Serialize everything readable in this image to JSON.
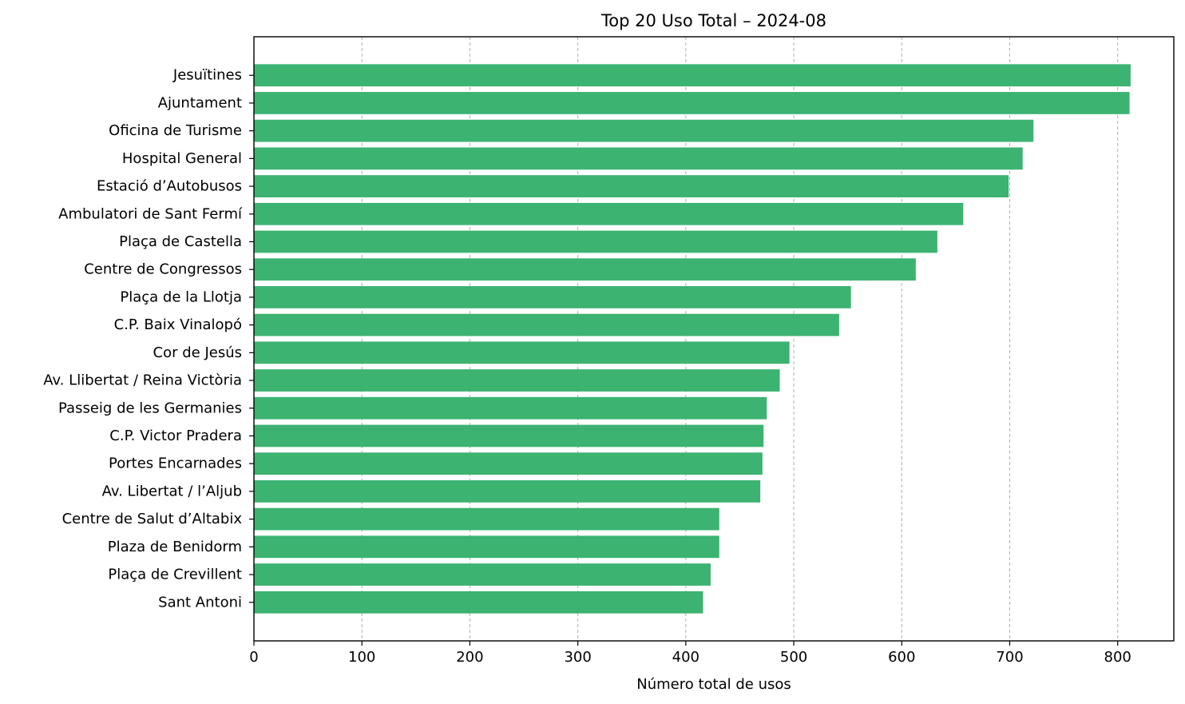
{
  "chart_data": {
    "type": "bar",
    "orientation": "horizontal",
    "title": "Top 20 Uso Total – 2024-08",
    "xlabel": "Número total de usos",
    "ylabel": "",
    "xlim": [
      0,
      852
    ],
    "xticks": [
      0,
      100,
      200,
      300,
      400,
      500,
      600,
      700,
      800
    ],
    "grid": "x-dashed",
    "bar_color": "#3cb371",
    "categories": [
      "Jesuïtines",
      "Ajuntament",
      "Oficina de Turisme",
      "Hospital General",
      "Estació d’Autobusos",
      "Ambulatori de Sant Fermí",
      "Plaça de Castella",
      "Centre de Congressos",
      "Plaça de la Llotja",
      "C.P. Baix Vinalopó",
      "Cor de Jesús",
      "Av. Llibertat / Reina Victòria",
      "Passeig de les Germanies",
      "C.P. Victor Pradera",
      "Portes Encarnades",
      "Av. Libertat / l’Aljub",
      "Centre de Salut d’Altabix",
      "Plaza de Benidorm",
      "Plaça de Crevillent",
      "Sant Antoni"
    ],
    "values": [
      812,
      811,
      722,
      712,
      699,
      657,
      633,
      613,
      553,
      542,
      496,
      487,
      475,
      472,
      471,
      469,
      431,
      431,
      423,
      416
    ]
  }
}
